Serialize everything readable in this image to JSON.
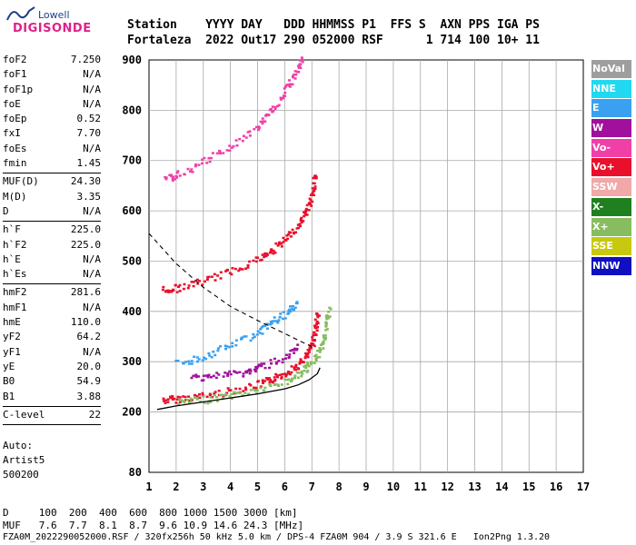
{
  "logo": {
    "top": "Lowell",
    "main": "DIGISONDE"
  },
  "header": {
    "line1": "Station    YYYY DAY   DDD HHMMSS P1  FFS S  AXN PPS IGA PS",
    "line2": "Fortaleza  2022 Out17 290 052000 RSF      1 714 100 10+ 11"
  },
  "params": [
    {
      "k": "foF2",
      "v": "7.250"
    },
    {
      "k": "foF1",
      "v": "N/A"
    },
    {
      "k": "foF1p",
      "v": "N/A"
    },
    {
      "k": "foE",
      "v": "N/A"
    },
    {
      "k": "foEp",
      "v": "0.52"
    },
    {
      "k": "fxI",
      "v": "7.70"
    },
    {
      "k": "foEs",
      "v": "N/A"
    },
    {
      "k": "fmin",
      "v": "1.45"
    }
  ],
  "params2": [
    {
      "k": "MUF(D)",
      "v": "24.30"
    },
    {
      "k": "M(D)",
      "v": "3.35"
    },
    {
      "k": "D",
      "v": "N/A"
    }
  ],
  "params3": [
    {
      "k": "h`F",
      "v": "225.0"
    },
    {
      "k": "h`F2",
      "v": "225.0"
    },
    {
      "k": "h`E",
      "v": "N/A"
    },
    {
      "k": "h`Es",
      "v": "N/A"
    }
  ],
  "params4": [
    {
      "k": "hmF2",
      "v": "281.6"
    },
    {
      "k": "hmF1",
      "v": "N/A"
    },
    {
      "k": "hmE",
      "v": "110.0"
    },
    {
      "k": "yF2",
      "v": "64.2"
    },
    {
      "k": "yF1",
      "v": "N/A"
    },
    {
      "k": "yE",
      "v": "20.0"
    },
    {
      "k": "B0",
      "v": "54.9"
    },
    {
      "k": "B1",
      "v": "3.88"
    }
  ],
  "params5": [
    {
      "k": "C-level",
      "v": "22"
    }
  ],
  "auto": {
    "l1": "Auto:",
    "l2": "Artist5",
    "l3": "500200"
  },
  "legend": [
    {
      "label": "NoVal",
      "color": "#9e9e9e"
    },
    {
      "label": "NNE",
      "color": "#22d8f0"
    },
    {
      "label": "E",
      "color": "#3aa0f0"
    },
    {
      "label": "W",
      "color": "#a0109c"
    },
    {
      "label": "Vo-",
      "color": "#f040a8"
    },
    {
      "label": "Vo+",
      "color": "#e8102c"
    },
    {
      "label": "SSW",
      "color": "#f0a8a8"
    },
    {
      "label": "X-",
      "color": "#208020"
    },
    {
      "label": "X+",
      "color": "#88bc60"
    },
    {
      "label": "SSE",
      "color": "#c8c810"
    },
    {
      "label": "NNW",
      "color": "#1010c0"
    }
  ],
  "footer": {
    "l1": "D     100  200  400  600  800 1000 1500 3000 [km]",
    "l2": "MUF   7.6  7.7  8.1  8.7  9.6 10.9 14.6 24.3 [MHz]",
    "l3": "FZA0M_2022290052000.RSF / 320fx256h 50 kHz 5.0 km / DPS-4 FZA0M 904 / 3.9 S 321.6 E   Ion2Png 1.3.20"
  },
  "chart_data": {
    "type": "scatter",
    "xlim": [
      1,
      17
    ],
    "ylim": [
      80,
      900
    ],
    "x_ticks": [
      1,
      2,
      3,
      4,
      5,
      6,
      7,
      8,
      9,
      10,
      11,
      12,
      13,
      14,
      15,
      16,
      17
    ],
    "y_ticks": [
      80,
      200,
      300,
      400,
      500,
      600,
      700,
      800,
      900
    ],
    "grid": true,
    "traces": [
      {
        "name": "1-hop O trace",
        "color": "#e8102c",
        "points": [
          [
            1.5,
            225
          ],
          [
            2,
            228
          ],
          [
            3,
            234
          ],
          [
            4,
            244
          ],
          [
            5,
            256
          ],
          [
            5.5,
            266
          ],
          [
            6,
            280
          ],
          [
            6.5,
            296
          ],
          [
            6.8,
            315
          ],
          [
            7,
            340
          ],
          [
            7.1,
            370
          ],
          [
            7.2,
            400
          ]
        ]
      },
      {
        "name": "1-hop X trace",
        "color": "#88bc60",
        "points": [
          [
            2,
            220
          ],
          [
            3,
            226
          ],
          [
            4,
            235
          ],
          [
            5,
            245
          ],
          [
            6,
            262
          ],
          [
            6.6,
            280
          ],
          [
            7,
            300
          ],
          [
            7.3,
            330
          ],
          [
            7.5,
            370
          ],
          [
            7.6,
            410
          ]
        ]
      },
      {
        "name": "2-hop O trace",
        "color": "#e8102c",
        "points": [
          [
            1.5,
            445
          ],
          [
            2,
            448
          ],
          [
            3,
            462
          ],
          [
            4,
            482
          ],
          [
            5,
            506
          ],
          [
            5.5,
            522
          ],
          [
            6,
            545
          ],
          [
            6.5,
            575
          ],
          [
            6.8,
            605
          ],
          [
            7,
            640
          ],
          [
            7.1,
            680
          ]
        ]
      },
      {
        "name": "3-hop O trace",
        "color": "#f040a8",
        "points": [
          [
            1.6,
            665
          ],
          [
            2,
            672
          ],
          [
            3,
            700
          ],
          [
            4,
            730
          ],
          [
            5,
            770
          ],
          [
            5.5,
            800
          ],
          [
            6,
            840
          ],
          [
            6.4,
            880
          ],
          [
            6.6,
            905
          ]
        ]
      },
      {
        "name": "scatter E",
        "color": "#3aa0f0",
        "points": [
          [
            2,
            300
          ],
          [
            3,
            310
          ],
          [
            4,
            335
          ],
          [
            5,
            360
          ],
          [
            5.5,
            380
          ],
          [
            6,
            395
          ],
          [
            6.5,
            420
          ]
        ]
      },
      {
        "name": "scatter W",
        "color": "#a0109c",
        "points": [
          [
            2.5,
            270
          ],
          [
            3.5,
            275
          ],
          [
            4.5,
            280
          ],
          [
            5,
            290
          ],
          [
            6,
            310
          ],
          [
            6.5,
            330
          ]
        ]
      }
    ],
    "profile_solid": [
      [
        1.3,
        205
      ],
      [
        2,
        212
      ],
      [
        3,
        220
      ],
      [
        4,
        228
      ],
      [
        5,
        236
      ],
      [
        6,
        246
      ],
      [
        6.5,
        254
      ],
      [
        6.9,
        264
      ],
      [
        7.2,
        276
      ],
      [
        7.3,
        288
      ]
    ],
    "profile_dashed": [
      [
        1,
        555
      ],
      [
        1.5,
        525
      ],
      [
        2,
        495
      ],
      [
        3,
        448
      ],
      [
        4,
        410
      ],
      [
        5,
        382
      ],
      [
        6,
        356
      ],
      [
        6.6,
        340
      ],
      [
        7,
        330
      ]
    ]
  }
}
